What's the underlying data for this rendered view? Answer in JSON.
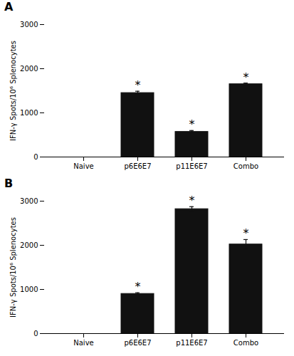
{
  "chart_data": [
    {
      "type": "bar",
      "title": "A",
      "categories": [
        "Naive",
        "p6E6E7",
        "p11E6E7",
        "Combo"
      ],
      "values": [
        0,
        1450,
        570,
        1650
      ],
      "errors": [
        0,
        40,
        30,
        25
      ],
      "annotations": [
        {
          "x": "p6E6E7",
          "text": "*"
        },
        {
          "x": "p11E6E7",
          "text": "*"
        },
        {
          "x": "Combo",
          "text": "*"
        }
      ],
      "color": "#111111",
      "ylabel": "IFN-γ Spots/10⁶ Splenocytes",
      "ylim": [
        0,
        3000
      ],
      "yticks": [
        0,
        1000,
        2000,
        3000
      ],
      "grid": false
    },
    {
      "type": "bar",
      "title": "B",
      "categories": [
        "Naive",
        "p6E6E7",
        "p11E6E7",
        "Combo"
      ],
      "values": [
        0,
        900,
        2820,
        2020
      ],
      "errors": [
        0,
        25,
        55,
        110
      ],
      "annotations": [
        {
          "x": "p6E6E7",
          "text": "*"
        },
        {
          "x": "p11E6E7",
          "text": "*"
        },
        {
          "x": "Combo",
          "text": "*"
        }
      ],
      "color": "#111111",
      "ylabel": "IFN-γ Spots/10⁶ Splenocytes",
      "ylim": [
        0,
        3000
      ],
      "yticks": [
        0,
        1000,
        2000,
        3000
      ],
      "grid": false
    }
  ]
}
